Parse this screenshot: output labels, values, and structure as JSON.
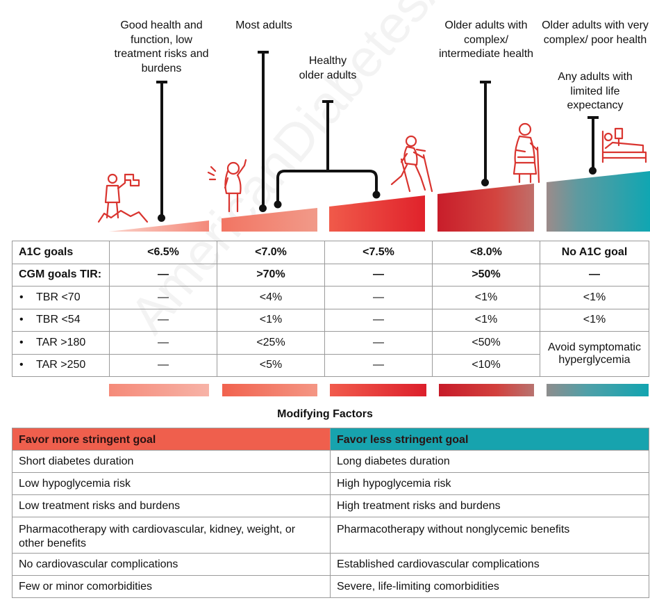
{
  "watermark": "AmericanDiabetesAssociation",
  "populations": [
    {
      "label": "Good health and function, low treatment risks and burdens"
    },
    {
      "label": "Most adults"
    },
    {
      "label": "Healthy older adults"
    },
    {
      "label": "Older adults with complex/ intermediate health"
    },
    {
      "label": "Older adults with very complex/ poor health",
      "label2": "Any adults with limited life expectancy"
    }
  ],
  "icons": [
    "mountain-summit-flag-icon",
    "person-waving-icon",
    "older-adult-walking-poles-icon",
    "older-adult-cane-icon",
    "hospital-bed-icon"
  ],
  "colors": {
    "light_coral": "#f4958a",
    "coral": "#f0624e",
    "red": "#e23a37",
    "deep_red": "#c9242d",
    "teal": "#16a2ae",
    "grey": "#8a8a8a"
  },
  "goals_table": {
    "rows": [
      {
        "label": "A1C goals",
        "bullet": false,
        "values": [
          "<6.5%",
          "<7.0%",
          "<7.5%",
          "<8.0%",
          "No A1C goal"
        ]
      },
      {
        "label": "CGM goals TIR:",
        "bullet": false,
        "values": [
          "—",
          ">70%",
          "—",
          ">50%",
          "—"
        ]
      },
      {
        "label": "TBR <70",
        "bullet": true,
        "values": [
          "—",
          "<4%",
          "—",
          "<1%",
          "<1%"
        ]
      },
      {
        "label": "TBR <54",
        "bullet": true,
        "values": [
          "—",
          "<1%",
          "—",
          "<1%",
          "<1%"
        ]
      },
      {
        "label": "TAR >180",
        "bullet": true,
        "values": [
          "—",
          "<25%",
          "—",
          "<50%"
        ]
      },
      {
        "label": "TAR >250",
        "bullet": true,
        "values": [
          "—",
          "<5%",
          "—",
          "<10%"
        ]
      }
    ],
    "merged_note": "Avoid symptomatic hyperglycemia",
    "bullet_char": "•"
  },
  "modifying": {
    "title": "Modifying Factors",
    "left_header": "Favor more stringent goal",
    "right_header": "Favor less stringent goal",
    "rows": [
      [
        "Short diabetes duration",
        "Long diabetes duration"
      ],
      [
        "Low hypoglycemia risk",
        "High hypoglycemia risk"
      ],
      [
        "Low treatment risks and burdens",
        "High treatment risks and burdens"
      ],
      [
        "Pharmacotherapy with cardiovascular, kidney, weight, or other benefits",
        "Pharmacotherapy without nonglycemic benefits"
      ],
      [
        "No cardiovascular complications",
        "Established cardiovascular complications"
      ],
      [
        "Few or minor comorbidities",
        "Severe, life-limiting comorbidities"
      ]
    ]
  }
}
